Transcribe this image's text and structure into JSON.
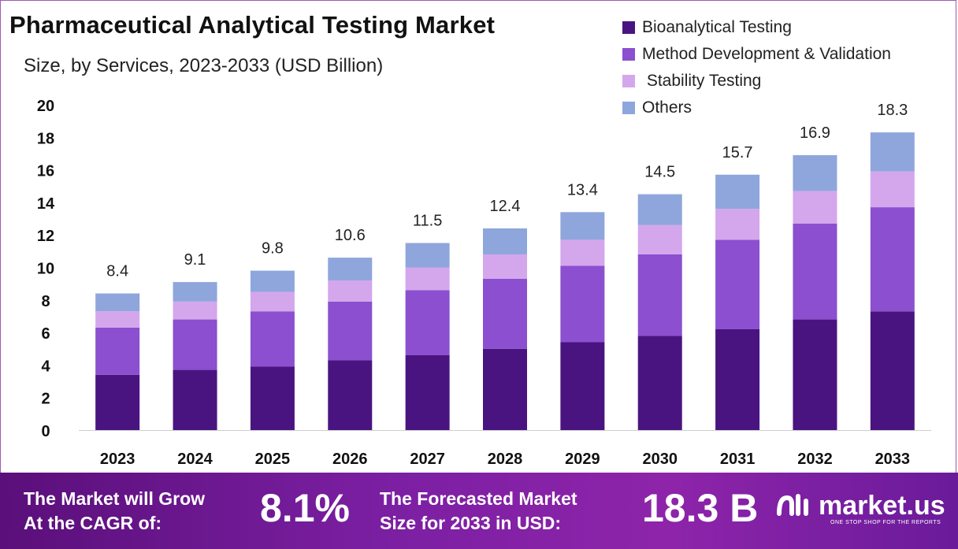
{
  "title": "Pharmaceutical Analytical Testing Market",
  "subtitle": "Size, by Services, 2023-2033 (USD Billion)",
  "colors": {
    "bioanalytical": "#4a1480",
    "method": "#8b4fcf",
    "stability": "#d4a6ec",
    "others": "#8fa6dc",
    "banner": "#7b1fa2"
  },
  "chart_data": {
    "type": "bar",
    "stacked": true,
    "categories": [
      "2023",
      "2024",
      "2025",
      "2026",
      "2027",
      "2028",
      "2029",
      "2030",
      "2031",
      "2032",
      "2033"
    ],
    "series": [
      {
        "name": "Bioanalytical Testing",
        "values": [
          3.4,
          3.7,
          3.9,
          4.3,
          4.6,
          5.0,
          5.4,
          5.8,
          6.2,
          6.8,
          7.3
        ]
      },
      {
        "name": "Method Development & Validation",
        "values": [
          2.9,
          3.1,
          3.4,
          3.6,
          4.0,
          4.3,
          4.7,
          5.0,
          5.5,
          5.9,
          6.4
        ]
      },
      {
        "name": " Stability Testing",
        "values": [
          1.0,
          1.1,
          1.2,
          1.3,
          1.4,
          1.5,
          1.6,
          1.8,
          1.9,
          2.0,
          2.2
        ]
      },
      {
        "name": "Others",
        "values": [
          1.1,
          1.2,
          1.3,
          1.4,
          1.5,
          1.6,
          1.7,
          1.9,
          2.1,
          2.2,
          2.4
        ]
      }
    ],
    "totals": [
      "8.4",
      "9.1",
      "9.8",
      "10.6",
      "11.5",
      "12.4",
      "13.4",
      "14.5",
      "15.7",
      "16.9",
      "18.3"
    ],
    "yticks": [
      "0",
      "2",
      "4",
      "6",
      "8",
      "10",
      "12",
      "14",
      "16",
      "18",
      "20"
    ],
    "ylim": [
      0,
      20
    ],
    "grid": false,
    "legend_position": "top-right"
  },
  "banner": {
    "cagr_label_line1": "The Market will Grow",
    "cagr_label_line2": "At the CAGR of:",
    "cagr_value": "8.1%",
    "forecast_label_line1": "The Forecasted Market",
    "forecast_label_line2": "Size for 2033 in USD:",
    "forecast_value": "18.3 B",
    "logo_name": "market.us",
    "logo_tagline": "ONE STOP SHOP FOR THE REPORTS"
  }
}
